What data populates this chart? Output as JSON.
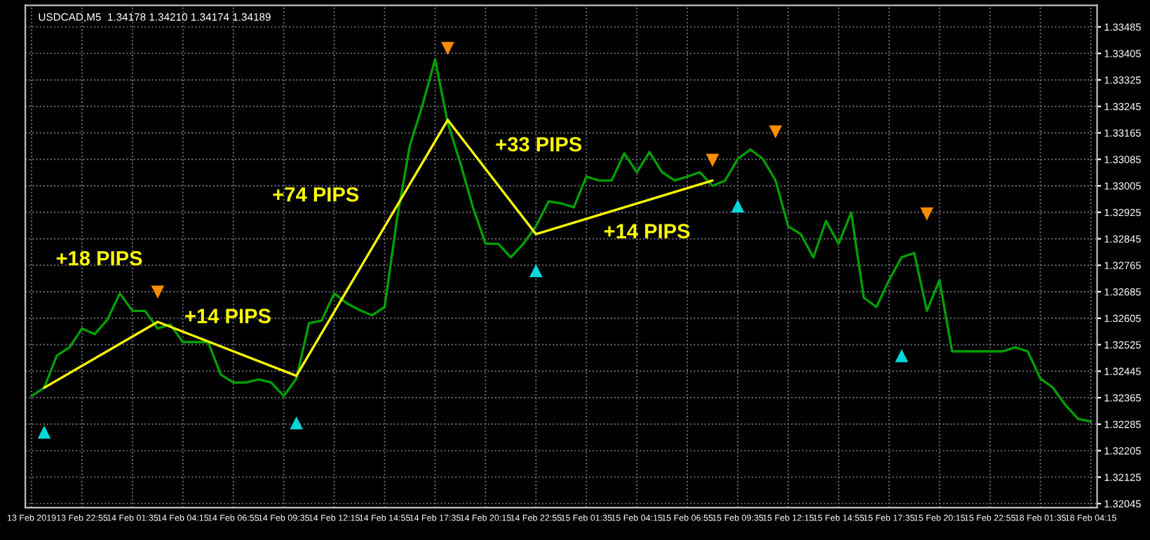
{
  "chart_data": {
    "type": "line",
    "title": "USDCAD,M5  1.34178 1.34210 1.34174 1.34189",
    "categories": [
      "13 Feb 2019",
      null,
      null,
      null,
      "13 Feb 22:55",
      null,
      null,
      null,
      "14 Feb 01:35",
      null,
      null,
      null,
      "14 Feb 04:15",
      null,
      null,
      null,
      "14 Feb 06:55",
      null,
      null,
      null,
      "14 Feb 09:35",
      null,
      null,
      null,
      "14 Feb 12:15",
      null,
      null,
      null,
      "14 Feb 14:55",
      null,
      null,
      null,
      "14 Feb 17:35",
      null,
      null,
      null,
      "14 Feb 20:15",
      null,
      null,
      null,
      "14 Feb 22:55",
      null,
      null,
      null,
      "15 Feb 01:35",
      null,
      null,
      null,
      "15 Feb 04:15",
      null,
      null,
      null,
      "15 Feb 06:55",
      null,
      null,
      null,
      "15 Feb 09:35",
      null,
      null,
      null,
      "15 Feb 12:15",
      null,
      null,
      null,
      "15 Feb 14:55",
      null,
      null,
      null,
      "15 Feb 17:35",
      null,
      null,
      null,
      "15 Feb 20:15",
      null,
      null,
      null,
      "15 Feb 22:55",
      null,
      null,
      null,
      "18 Feb 01:35",
      null,
      null,
      null,
      "18 Feb 04:15"
    ],
    "ylim": [
      1.32033,
      1.3355
    ],
    "yticks": [
      1.33485,
      1.33405,
      1.33325,
      1.33245,
      1.33165,
      1.33085,
      1.33005,
      1.32925,
      1.32845,
      1.32765,
      1.32685,
      1.32605,
      1.32525,
      1.32445,
      1.32365,
      1.32285,
      1.32205,
      1.32125,
      1.32045
    ],
    "grid": true,
    "series": [
      {
        "color": "#00a000",
        "line_style": "solid",
        "values": [
          1.3237,
          1.32395,
          1.32492,
          1.32517,
          1.32574,
          1.32557,
          1.326,
          1.3268,
          1.32627,
          1.32627,
          1.32574,
          1.32586,
          1.32533,
          1.32533,
          1.32533,
          1.32435,
          1.32411,
          1.32411,
          1.3242,
          1.32411,
          1.3237,
          1.32423,
          1.3259,
          1.32598,
          1.3268,
          1.3265,
          1.3263,
          1.32614,
          1.32639,
          1.32911,
          1.33127,
          1.33249,
          1.33387,
          1.33196,
          1.33074,
          1.3294,
          1.3283,
          1.3283,
          1.32789,
          1.3283,
          1.32883,
          1.32958,
          1.32952,
          1.3294,
          1.33033,
          1.33021,
          1.33021,
          1.33103,
          1.33046,
          1.33107,
          1.33046,
          1.33021,
          1.33033,
          1.33046,
          1.33005,
          1.33021,
          1.33086,
          1.33115,
          1.33086,
          1.33021,
          1.32883,
          1.32859,
          1.32789,
          1.32899,
          1.3283,
          1.32924,
          1.32667,
          1.32639,
          1.3272,
          1.32789,
          1.32802,
          1.32627,
          1.3272,
          1.32505,
          1.32505,
          1.32505,
          1.32505,
          1.32505,
          1.32517,
          1.32505,
          1.32423,
          1.32395,
          1.32342,
          1.32301,
          1.32293
        ]
      },
      {
        "color": "#ffff00",
        "line_style": "solid",
        "values": [
          null,
          1.32395,
          null,
          null,
          null,
          null,
          null,
          null,
          null,
          null,
          1.32594,
          null,
          null,
          null,
          null,
          null,
          null,
          null,
          null,
          null,
          null,
          1.32431,
          null,
          null,
          null,
          null,
          null,
          null,
          null,
          null,
          null,
          null,
          null,
          1.33204,
          null,
          null,
          null,
          null,
          null,
          null,
          1.32859,
          null,
          null,
          null,
          null,
          null,
          null,
          null,
          null,
          null,
          null,
          null,
          null,
          null,
          1.33021,
          null,
          null,
          null,
          null,
          null,
          null,
          null,
          null,
          null,
          null,
          null,
          null,
          null,
          null,
          null,
          null,
          null,
          null,
          null,
          null,
          null,
          null,
          null,
          null,
          null,
          null,
          null,
          null,
          null,
          null
        ]
      },
      {
        "type": "scatter",
        "color": "#00d8d8",
        "marker": "triangle",
        "values": [
          null,
          1.32261,
          null,
          null,
          null,
          null,
          null,
          null,
          null,
          null,
          null,
          null,
          null,
          null,
          null,
          null,
          null,
          null,
          null,
          null,
          null,
          1.32289,
          null,
          null,
          null,
          null,
          null,
          null,
          null,
          null,
          null,
          null,
          null,
          null,
          null,
          null,
          null,
          null,
          null,
          null,
          1.32749,
          null,
          null,
          null,
          null,
          null,
          null,
          null,
          null,
          null,
          null,
          null,
          null,
          null,
          null,
          null,
          1.32944,
          null,
          null,
          null,
          null,
          null,
          null,
          null,
          null,
          null,
          null,
          null,
          null,
          1.32492,
          null,
          null,
          null,
          null,
          null,
          null,
          null,
          null,
          null,
          null,
          null,
          null,
          null,
          null,
          null
        ]
      },
      {
        "type": "scatter",
        "color": "#ff8c00",
        "marker": "triangle_down",
        "values": [
          null,
          null,
          null,
          null,
          null,
          null,
          null,
          null,
          null,
          null,
          1.32684,
          null,
          null,
          null,
          null,
          null,
          null,
          null,
          null,
          null,
          null,
          null,
          null,
          null,
          null,
          null,
          null,
          null,
          null,
          null,
          null,
          null,
          null,
          1.3342,
          null,
          null,
          null,
          null,
          null,
          null,
          null,
          null,
          null,
          null,
          null,
          null,
          null,
          null,
          null,
          null,
          null,
          null,
          null,
          null,
          1.33082,
          null,
          null,
          null,
          null,
          1.33168,
          null,
          null,
          null,
          null,
          null,
          null,
          null,
          null,
          null,
          null,
          null,
          1.3292,
          null,
          null,
          null,
          null,
          null,
          null,
          null,
          null,
          null,
          null,
          null,
          null,
          null
        ]
      }
    ],
    "annotations": [
      "+18 PIPS",
      "+14 PIPS",
      "+74 PIPS",
      "+33 PIPS",
      "+14 PIPS"
    ]
  }
}
